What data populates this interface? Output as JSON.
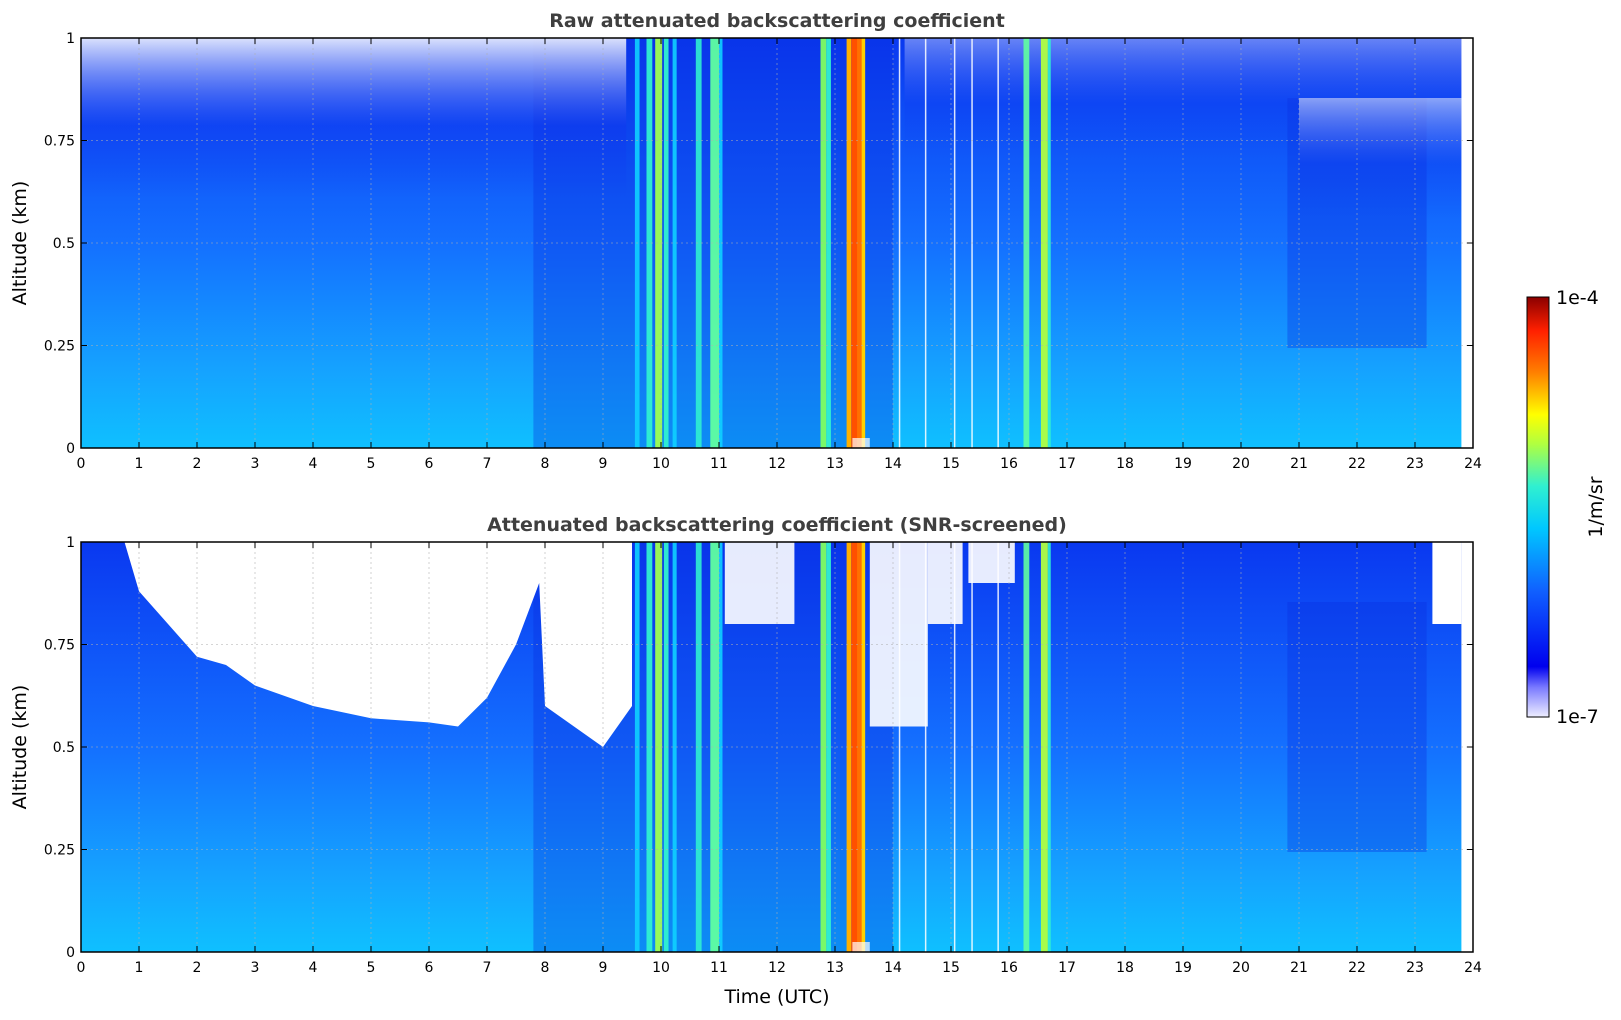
{
  "colors": {
    "background": "#ffffff",
    "colormap": [
      "#eeeeff",
      "#0000ee",
      "#1060ff",
      "#00c8ff",
      "#60ffa0",
      "#ffff00",
      "#ff8000",
      "#ff2000",
      "#8b0000"
    ]
  },
  "chart_data": [
    {
      "type": "heatmap",
      "title": "Raw attenuated backscattering coefficient",
      "xlabel": "",
      "ylabel": "Altitude (km)",
      "xlim": [
        0,
        24
      ],
      "ylim": [
        0,
        1
      ],
      "xticks": [
        "0",
        "1",
        "2",
        "3",
        "4",
        "5",
        "6",
        "7",
        "8",
        "9",
        "10",
        "11",
        "12",
        "13",
        "14",
        "15",
        "16",
        "17",
        "18",
        "19",
        "20",
        "21",
        "22",
        "23",
        "24"
      ],
      "yticks": [
        "0",
        "0.25",
        "0.5",
        "0.75",
        "1"
      ],
      "grid": true,
      "data_end_time": 23.8,
      "notable_features": [
        {
          "type": "cloud/precip column",
          "time_range": [
            9.5,
            11.0
          ],
          "intensity": "medium"
        },
        {
          "type": "cloud/precip column",
          "time_range": [
            12.7,
            12.9
          ],
          "intensity": "medium"
        },
        {
          "type": "cloud/precip column",
          "time_range": [
            13.2,
            13.5
          ],
          "intensity": "high"
        },
        {
          "type": "cloud/precip column",
          "time_range": [
            16.2,
            16.7
          ],
          "intensity": "medium"
        }
      ]
    },
    {
      "type": "heatmap",
      "title": "Attenuated backscattering coefficient (SNR-screened)",
      "xlabel": "Time (UTC)",
      "ylabel": "Altitude (km)",
      "xlim": [
        0,
        24
      ],
      "ylim": [
        0,
        1
      ],
      "xticks": [
        "0",
        "1",
        "2",
        "3",
        "4",
        "5",
        "6",
        "7",
        "8",
        "9",
        "10",
        "11",
        "12",
        "13",
        "14",
        "15",
        "16",
        "17",
        "18",
        "19",
        "20",
        "21",
        "22",
        "23",
        "24"
      ],
      "yticks": [
        "0",
        "0.25",
        "0.5",
        "0.75",
        "1"
      ],
      "grid": true,
      "data_end_time": 23.8,
      "screened_region": "white (no data) above ~0.55-0.95 km between ~1 and ~10 UTC and above cloud gaps"
    }
  ],
  "colorbar": {
    "label": "1/m/sr",
    "max_label": "1e-4",
    "min_label": "1e-7",
    "scale": "log"
  }
}
